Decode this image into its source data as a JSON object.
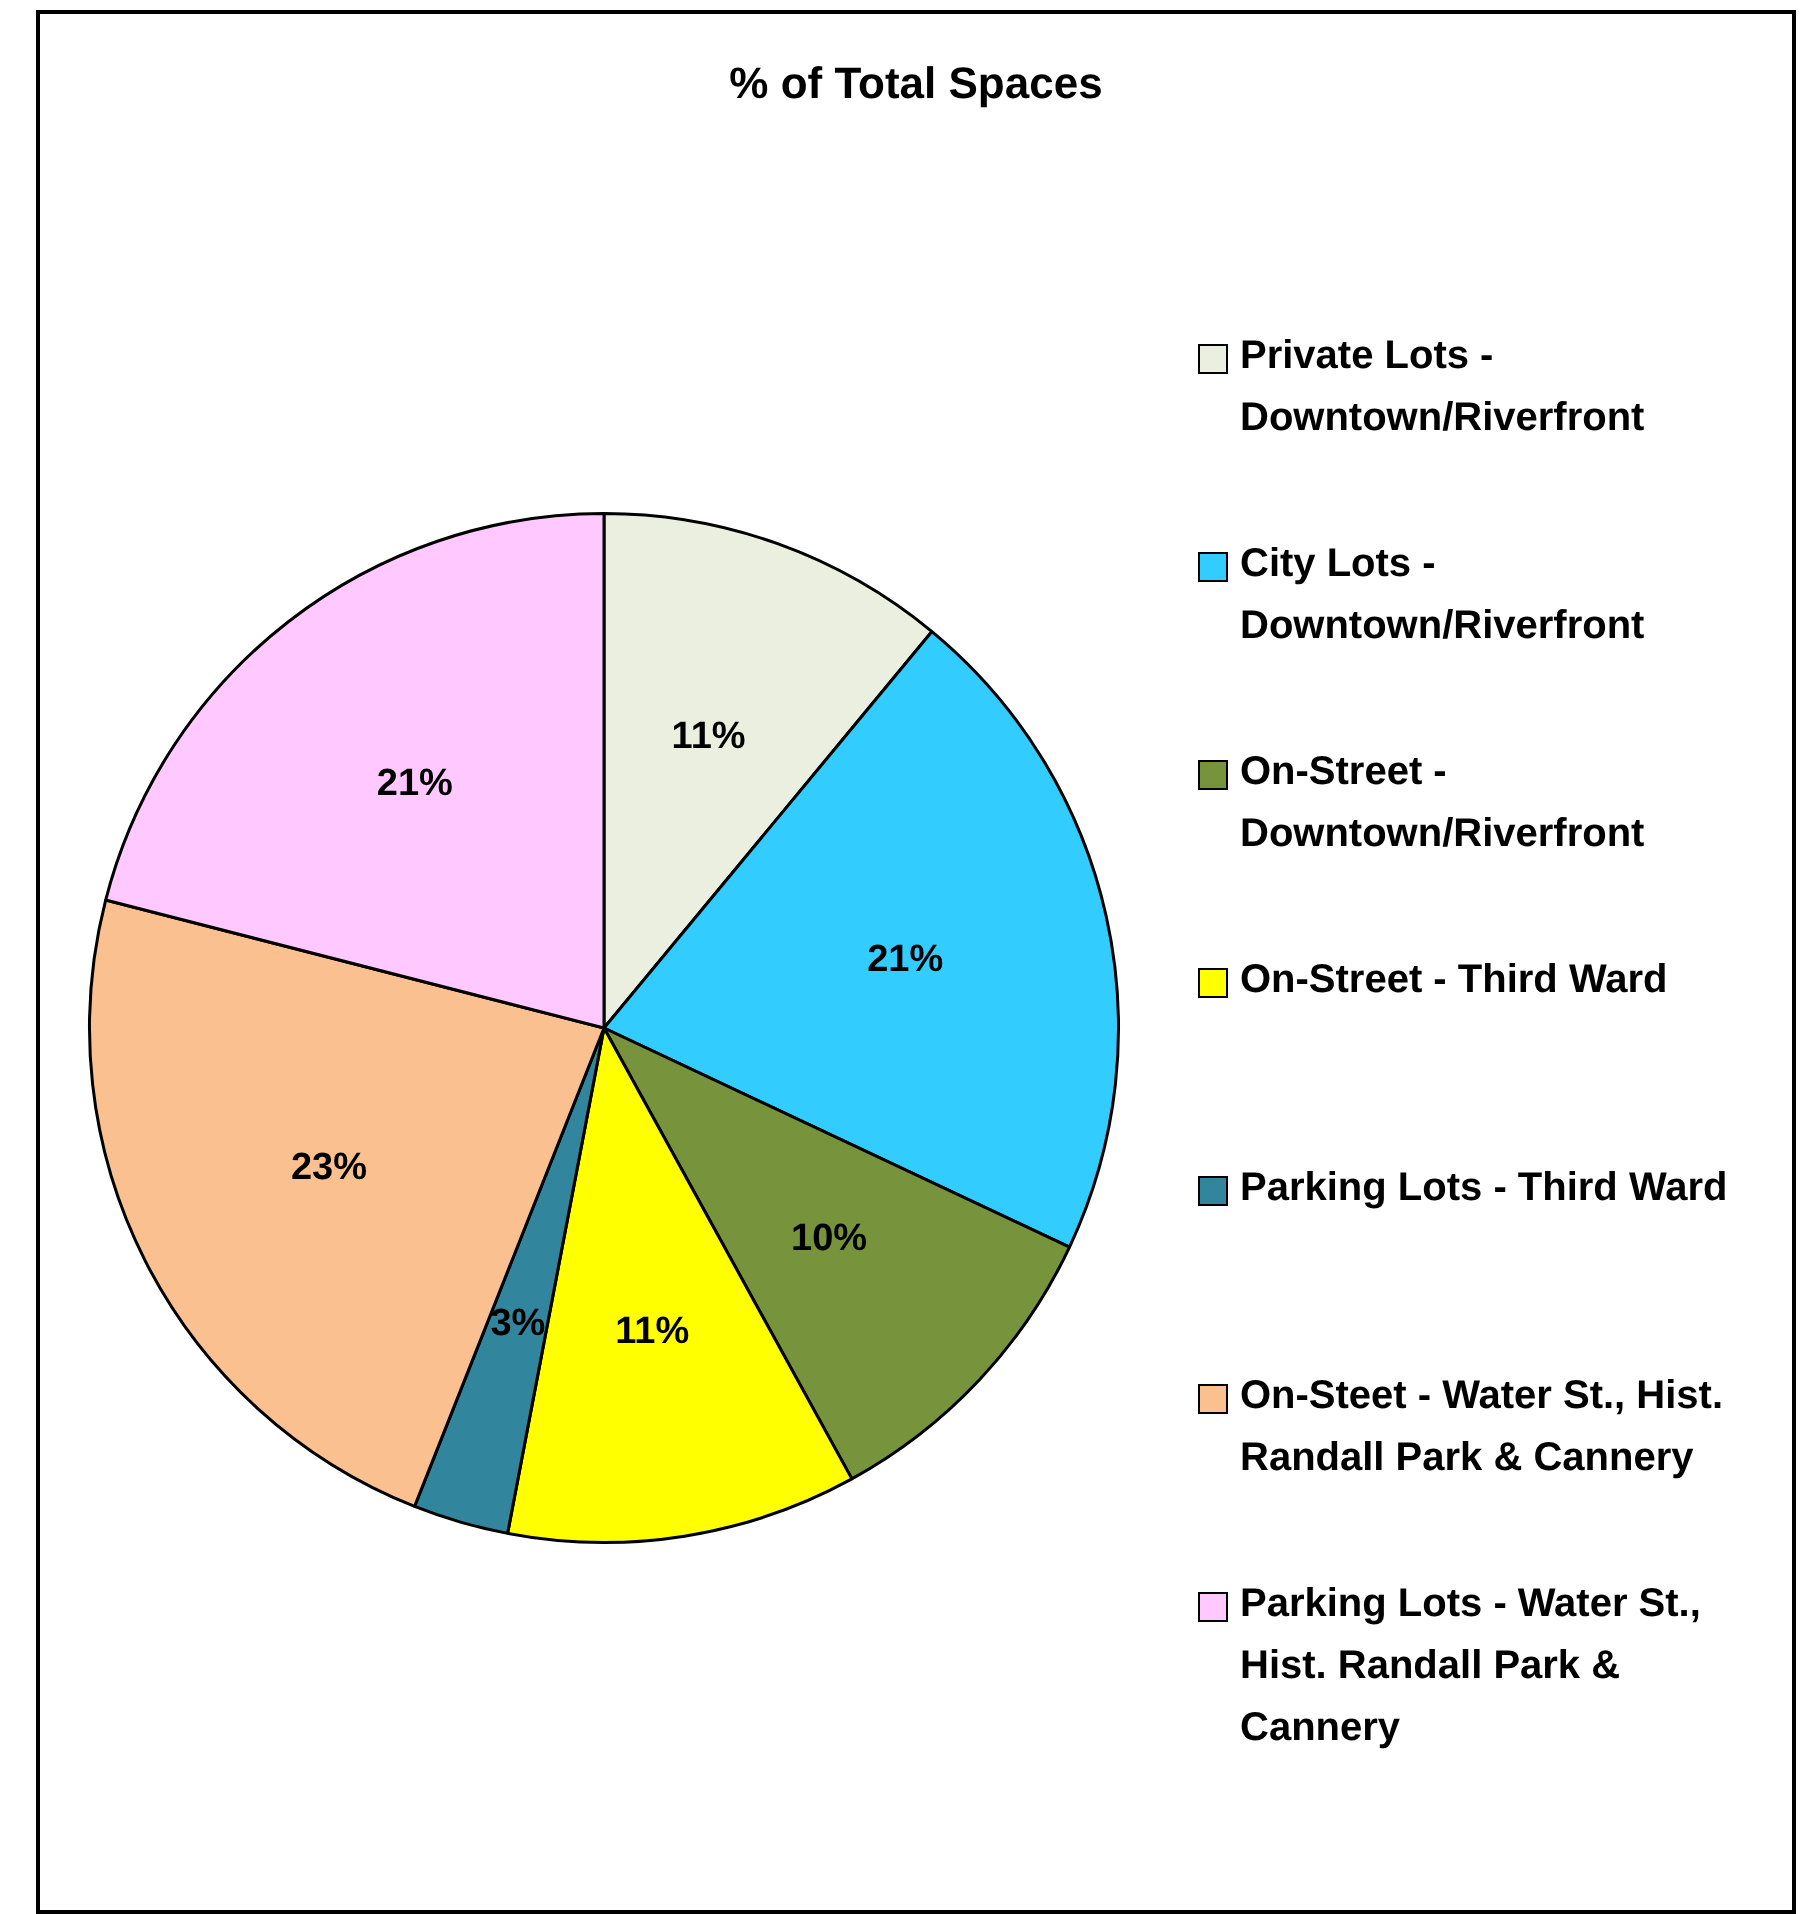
{
  "chart_data": {
    "type": "pie",
    "title": "% of Total Spaces",
    "categories": [
      "Private Lots - Downtown/Riverfront",
      "City Lots - Downtown/Riverfront",
      "On-Street - Downtown/Riverfront",
      "On-Street - Third Ward",
      "Parking Lots - Third Ward",
      "On-Steet - Water St., Hist. Randall Park & Cannery",
      "Parking Lots - Water St., Hist. Randall Park & Cannery"
    ],
    "values": [
      11,
      21,
      10,
      11,
      3,
      23,
      21
    ],
    "value_labels": [
      "11%",
      "21%",
      "10%",
      "11%",
      "3%",
      "23%",
      "21%"
    ],
    "colors": [
      "#ebefdf",
      "#33ccff",
      "#77933c",
      "#ffff00",
      "#31859c",
      "#fac090",
      "#ffc9ff"
    ],
    "legend": "right"
  }
}
